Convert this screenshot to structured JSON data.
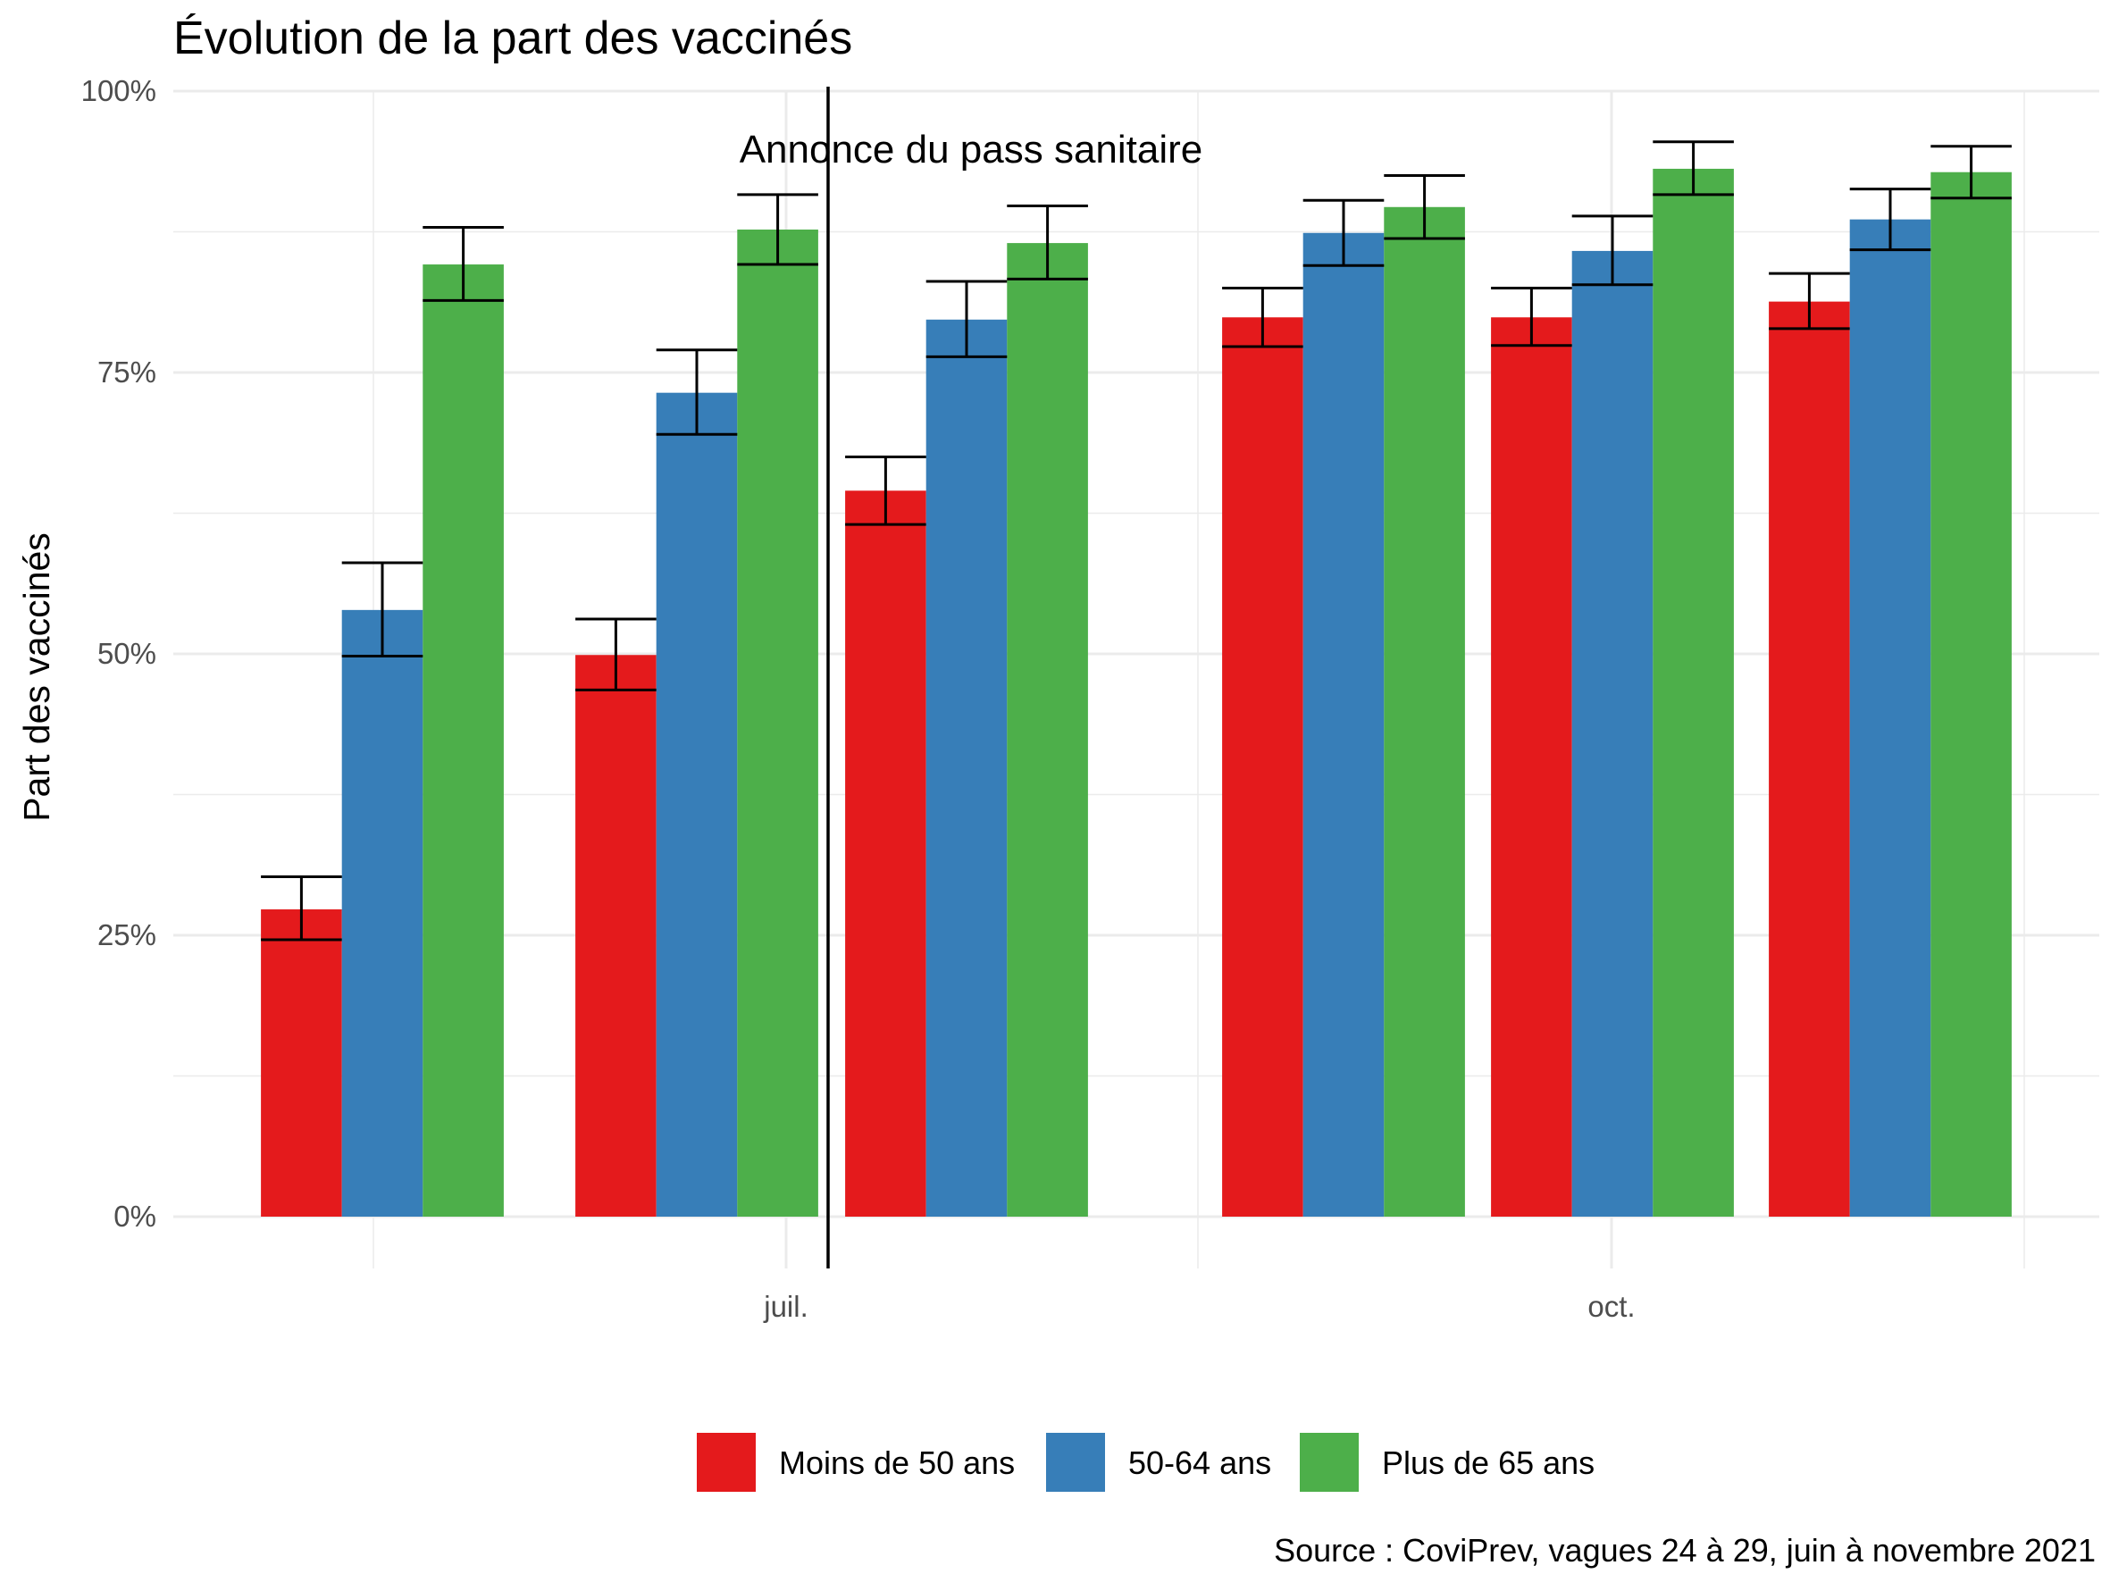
{
  "chart_data": {
    "type": "bar",
    "title": "Évolution de la part des vaccinés",
    "ylabel": "Part des vaccinés",
    "xlabel": "",
    "caption": "Source : CoviPrev, vagues 24 à 29, juin à novembre 2021",
    "annotation": "Annonce du pass sanitaire",
    "ylim": [
      0,
      100
    ],
    "y_ticks": [
      "0%",
      "25%",
      "50%",
      "75%",
      "100%"
    ],
    "x_ticks": [
      "juil.",
      "oct."
    ],
    "grid": true,
    "legend_position": "bottom",
    "series": [
      {
        "name": "Moins de 50 ans",
        "color": "#E41A1C",
        "values": [
          27.3,
          49.9,
          64.5,
          79.9,
          79.9,
          81.3
        ],
        "ci_low": [
          24.6,
          46.8,
          61.5,
          77.3,
          77.4,
          78.9
        ],
        "ci_high": [
          30.2,
          53.1,
          67.5,
          82.5,
          82.5,
          83.8
        ]
      },
      {
        "name": "50-64 ans",
        "color": "#377EB8",
        "values": [
          53.9,
          73.2,
          79.7,
          87.4,
          85.8,
          88.6
        ],
        "ci_low": [
          49.8,
          69.5,
          76.4,
          84.5,
          82.8,
          85.9
        ],
        "ci_high": [
          58.1,
          77.0,
          83.1,
          90.3,
          88.9,
          91.3
        ]
      },
      {
        "name": "Plus de 65 ans",
        "color": "#4DAF4A",
        "values": [
          84.6,
          87.7,
          86.5,
          89.7,
          93.1,
          92.8
        ],
        "ci_low": [
          81.4,
          84.6,
          83.3,
          86.9,
          90.8,
          90.5
        ],
        "ci_high": [
          87.9,
          90.8,
          89.8,
          92.5,
          95.5,
          95.1
        ]
      }
    ]
  }
}
